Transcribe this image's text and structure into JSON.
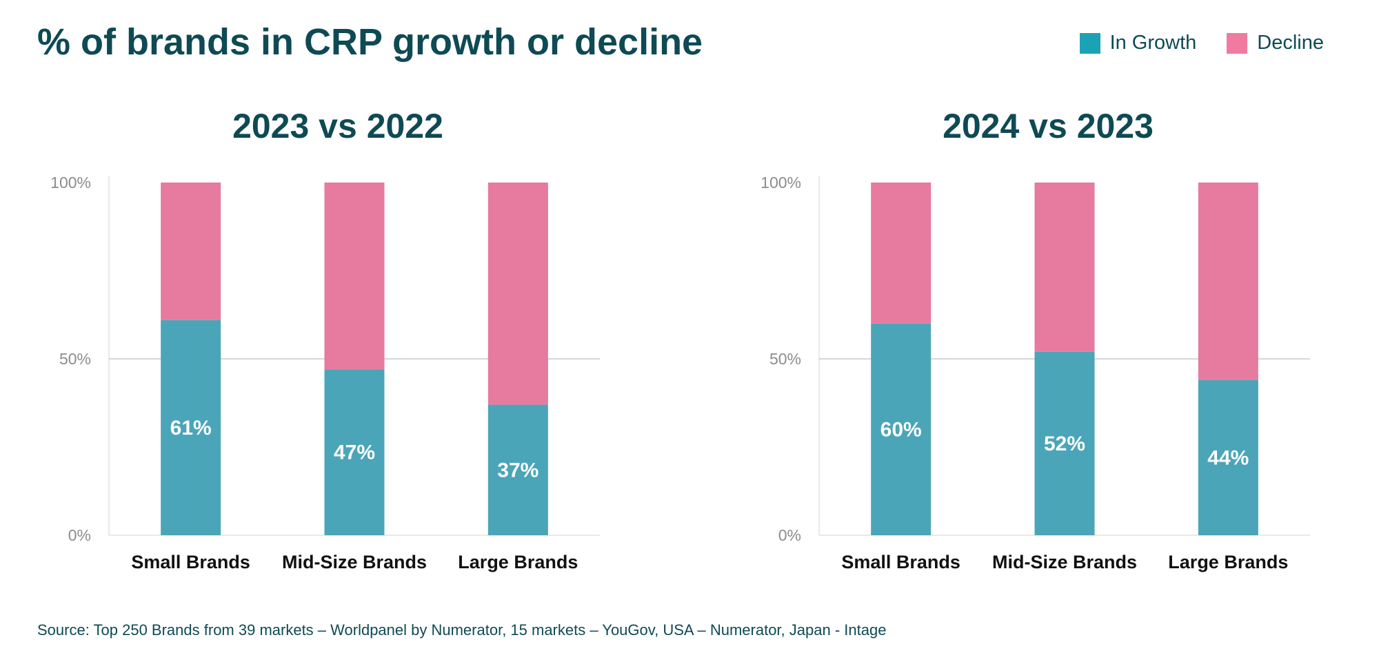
{
  "title": "% of brands in CRP growth or decline",
  "legend": {
    "growth_label": "In Growth",
    "decline_label": "Decline",
    "growth_color": "#1ba3b5",
    "decline_color": "#f07aa0"
  },
  "bar_colors": {
    "growth": "#4ba5b8",
    "decline": "#e67a9f"
  },
  "source": "Source: Top 250 Brands from 39 markets – Worldpanel by Numerator, 15 markets – YouGov, USA – Numerator, Japan - Intage",
  "chart_data": [
    {
      "type": "bar",
      "title": "2023 vs 2022",
      "stacked": true,
      "categories": [
        "Small Brands",
        "Mid-Size Brands",
        "Large Brands"
      ],
      "series": [
        {
          "name": "In Growth",
          "values": [
            61,
            47,
            37
          ]
        },
        {
          "name": "Decline",
          "values": [
            39,
            53,
            63
          ]
        }
      ],
      "data_labels": [
        "61%",
        "47%",
        "37%"
      ],
      "ylim": [
        0,
        100
      ],
      "yticks": [
        "0%",
        "50%",
        "100%"
      ],
      "ytick_values": [
        0,
        50,
        100
      ],
      "grid": "50%",
      "legend": "top-right"
    },
    {
      "type": "bar",
      "title": "2024 vs 2023",
      "stacked": true,
      "categories": [
        "Small Brands",
        "Mid-Size Brands",
        "Large Brands"
      ],
      "series": [
        {
          "name": "In Growth",
          "values": [
            60,
            52,
            44
          ]
        },
        {
          "name": "Decline",
          "values": [
            40,
            48,
            56
          ]
        }
      ],
      "data_labels": [
        "60%",
        "52%",
        "44%"
      ],
      "ylim": [
        0,
        100
      ],
      "yticks": [
        "0%",
        "50%",
        "100%"
      ],
      "ytick_values": [
        0,
        50,
        100
      ],
      "grid": "50%",
      "legend": "top-right"
    }
  ]
}
